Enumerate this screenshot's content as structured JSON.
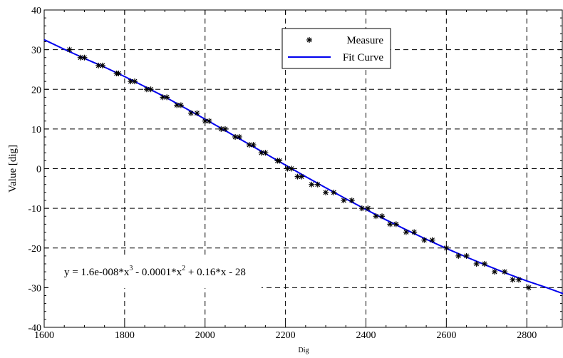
{
  "chart_data": {
    "type": "scatter",
    "xlabel": "Dig",
    "ylabel": "Value [dig]",
    "xlim": [
      1600,
      2890
    ],
    "ylim": [
      -40,
      40
    ],
    "xticks": [
      1600,
      1800,
      2000,
      2200,
      2400,
      2600,
      2800
    ],
    "yticks": [
      -40,
      -30,
      -20,
      -10,
      0,
      10,
      20,
      30,
      40
    ],
    "x_tick_labels": [
      "1600",
      "1800",
      "2000",
      "2200",
      "2400",
      "2600",
      "2800"
    ],
    "y_tick_labels": [
      "-40",
      "-30",
      "-20",
      "-10",
      "0",
      "10",
      "20",
      "30",
      "40"
    ],
    "grid": true,
    "legend_position": "top-center",
    "series": [
      {
        "name": "Measure",
        "kind": "scatter",
        "color": "#000000",
        "marker": "asterisk",
        "points": [
          [
            1663,
            30
          ],
          [
            1690,
            28
          ],
          [
            1700,
            28
          ],
          [
            1735,
            26
          ],
          [
            1745,
            26
          ],
          [
            1780,
            24
          ],
          [
            1785,
            24
          ],
          [
            1815,
            22
          ],
          [
            1825,
            22
          ],
          [
            1855,
            20
          ],
          [
            1865,
            20
          ],
          [
            1895,
            18
          ],
          [
            1905,
            18
          ],
          [
            1930,
            16
          ],
          [
            1940,
            16
          ],
          [
            1965,
            14
          ],
          [
            1980,
            14
          ],
          [
            2000,
            12
          ],
          [
            2010,
            12
          ],
          [
            2040,
            10
          ],
          [
            2050,
            10
          ],
          [
            2075,
            8
          ],
          [
            2085,
            8
          ],
          [
            2110,
            6
          ],
          [
            2120,
            6
          ],
          [
            2140,
            4
          ],
          [
            2150,
            4
          ],
          [
            2180,
            2
          ],
          [
            2185,
            2
          ],
          [
            2205,
            0
          ],
          [
            2215,
            0
          ],
          [
            2230,
            -2
          ],
          [
            2240,
            -2
          ],
          [
            2265,
            -4
          ],
          [
            2280,
            -4
          ],
          [
            2300,
            -6
          ],
          [
            2320,
            -6
          ],
          [
            2345,
            -8
          ],
          [
            2365,
            -8
          ],
          [
            2390,
            -10
          ],
          [
            2405,
            -10
          ],
          [
            2425,
            -12
          ],
          [
            2440,
            -12
          ],
          [
            2460,
            -14
          ],
          [
            2475,
            -14
          ],
          [
            2500,
            -16
          ],
          [
            2520,
            -16
          ],
          [
            2545,
            -18
          ],
          [
            2565,
            -18
          ],
          [
            2600,
            -20
          ],
          [
            2630,
            -22
          ],
          [
            2650,
            -22
          ],
          [
            2675,
            -24
          ],
          [
            2695,
            -24
          ],
          [
            2720,
            -26
          ],
          [
            2745,
            -26
          ],
          [
            2765,
            -28
          ],
          [
            2780,
            -28
          ],
          [
            2805,
            -30
          ]
        ]
      },
      {
        "name": "Fit Curve",
        "kind": "line",
        "color": "#0000ee",
        "points": [
          [
            1600,
            32.5
          ],
          [
            1650,
            30.1
          ],
          [
            1700,
            27.8
          ],
          [
            1750,
            25.6
          ],
          [
            1800,
            23.2
          ],
          [
            1850,
            20.7
          ],
          [
            1900,
            18.1
          ],
          [
            1950,
            15.3
          ],
          [
            2000,
            12.5
          ],
          [
            2050,
            9.6
          ],
          [
            2100,
            6.7
          ],
          [
            2150,
            3.8
          ],
          [
            2200,
            0.9
          ],
          [
            2250,
            -2.0
          ],
          [
            2300,
            -4.8
          ],
          [
            2350,
            -7.6
          ],
          [
            2400,
            -10.3
          ],
          [
            2450,
            -12.9
          ],
          [
            2500,
            -15.4
          ],
          [
            2550,
            -17.8
          ],
          [
            2600,
            -20.1
          ],
          [
            2650,
            -22.3
          ],
          [
            2700,
            -24.4
          ],
          [
            2750,
            -26.4
          ],
          [
            2800,
            -28.3
          ],
          [
            2850,
            -30.0
          ],
          [
            2890,
            -31.5
          ]
        ]
      }
    ],
    "annotation": {
      "parts": [
        "y = 1.6e-008*x",
        "3",
        " - 0.0001*x",
        "2",
        " + 0.16*x - 28"
      ]
    }
  }
}
